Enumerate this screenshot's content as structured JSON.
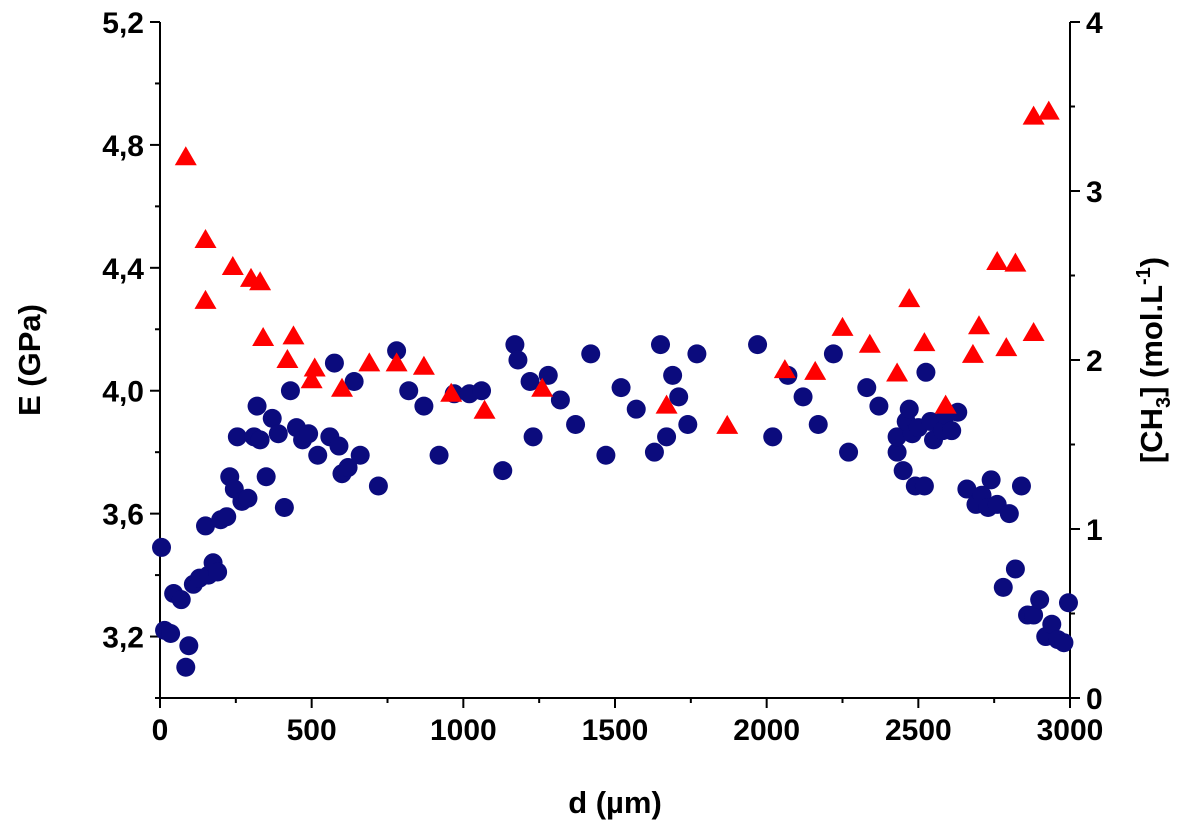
{
  "chart_data": {
    "type": "scatter",
    "xlabel": "d (µm)",
    "ylabel_left": "E (GPa)",
    "ylabel_right": {
      "main": "[CH",
      "sub3": "3",
      "mid": "] (mol.L",
      "sup": "-1",
      "end": ")"
    },
    "xlim": [
      0,
      3000
    ],
    "ylim_left": [
      3.0,
      5.2
    ],
    "ylim_right": [
      0,
      4
    ],
    "x_ticks": [
      0,
      500,
      1000,
      1500,
      2000,
      2500,
      3000
    ],
    "x_tick_labels": [
      "0",
      "500",
      "1000",
      "1500",
      "2000",
      "2500",
      "3000"
    ],
    "y_left_ticks": [
      3.2,
      3.6,
      4.0,
      4.4,
      4.8,
      5.2
    ],
    "y_left_tick_labels": [
      "3,2",
      "3,6",
      "4,0",
      "4,4",
      "4,8",
      "5,2"
    ],
    "y_right_ticks": [
      0,
      1,
      2,
      3,
      4
    ],
    "y_right_tick_labels": [
      "0",
      "1",
      "2",
      "3",
      "4"
    ],
    "colors": {
      "series_E": "#0b0b7d",
      "series_CH3": "#ff0000"
    },
    "series": [
      {
        "axis": "left",
        "marker": "circle",
        "points": [
          [
            5,
            3.49
          ],
          [
            15,
            3.22
          ],
          [
            35,
            3.21
          ],
          [
            45,
            3.34
          ],
          [
            70,
            3.32
          ],
          [
            85,
            3.1
          ],
          [
            95,
            3.17
          ],
          [
            110,
            3.37
          ],
          [
            130,
            3.39
          ],
          [
            150,
            3.56
          ],
          [
            160,
            3.4
          ],
          [
            175,
            3.44
          ],
          [
            190,
            3.41
          ],
          [
            200,
            3.58
          ],
          [
            220,
            3.59
          ],
          [
            230,
            3.72
          ],
          [
            245,
            3.68
          ],
          [
            255,
            3.85
          ],
          [
            270,
            3.64
          ],
          [
            290,
            3.65
          ],
          [
            310,
            3.85
          ],
          [
            320,
            3.95
          ],
          [
            330,
            3.84
          ],
          [
            350,
            3.72
          ],
          [
            370,
            3.91
          ],
          [
            390,
            3.86
          ],
          [
            410,
            3.62
          ],
          [
            430,
            4.0
          ],
          [
            450,
            3.88
          ],
          [
            470,
            3.84
          ],
          [
            490,
            3.86
          ],
          [
            520,
            3.79
          ],
          [
            560,
            3.85
          ],
          [
            575,
            4.09
          ],
          [
            590,
            3.82
          ],
          [
            600,
            3.73
          ],
          [
            620,
            3.75
          ],
          [
            640,
            4.03
          ],
          [
            660,
            3.79
          ],
          [
            720,
            3.69
          ],
          [
            780,
            4.13
          ],
          [
            820,
            4.0
          ],
          [
            870,
            3.95
          ],
          [
            920,
            3.79
          ],
          [
            970,
            3.99
          ],
          [
            1020,
            3.99
          ],
          [
            1060,
            4.0
          ],
          [
            1130,
            3.74
          ],
          [
            1170,
            4.15
          ],
          [
            1180,
            4.1
          ],
          [
            1220,
            4.03
          ],
          [
            1230,
            3.85
          ],
          [
            1280,
            4.05
          ],
          [
            1320,
            3.97
          ],
          [
            1370,
            3.89
          ],
          [
            1420,
            4.12
          ],
          [
            1470,
            3.79
          ],
          [
            1520,
            4.01
          ],
          [
            1570,
            3.94
          ],
          [
            1630,
            3.8
          ],
          [
            1650,
            4.15
          ],
          [
            1670,
            3.85
          ],
          [
            1690,
            4.05
          ],
          [
            1710,
            3.98
          ],
          [
            1740,
            3.89
          ],
          [
            1770,
            4.12
          ],
          [
            1970,
            4.15
          ],
          [
            2020,
            3.85
          ],
          [
            2070,
            4.05
          ],
          [
            2120,
            3.98
          ],
          [
            2170,
            3.89
          ],
          [
            2220,
            4.12
          ],
          [
            2270,
            3.8
          ],
          [
            2330,
            4.01
          ],
          [
            2370,
            3.95
          ],
          [
            2430,
            3.8
          ],
          [
            2430,
            3.85
          ],
          [
            2450,
            3.74
          ],
          [
            2460,
            3.9
          ],
          [
            2470,
            3.94
          ],
          [
            2480,
            3.86
          ],
          [
            2490,
            3.69
          ],
          [
            2500,
            3.88
          ],
          [
            2520,
            3.69
          ],
          [
            2525,
            4.06
          ],
          [
            2540,
            3.9
          ],
          [
            2550,
            3.84
          ],
          [
            2580,
            3.87
          ],
          [
            2590,
            3.92
          ],
          [
            2610,
            3.87
          ],
          [
            2630,
            3.93
          ],
          [
            2660,
            3.68
          ],
          [
            2690,
            3.63
          ],
          [
            2710,
            3.66
          ],
          [
            2730,
            3.62
          ],
          [
            2740,
            3.71
          ],
          [
            2760,
            3.63
          ],
          [
            2780,
            3.36
          ],
          [
            2800,
            3.6
          ],
          [
            2820,
            3.42
          ],
          [
            2840,
            3.69
          ],
          [
            2860,
            3.27
          ],
          [
            2880,
            3.27
          ],
          [
            2900,
            3.32
          ],
          [
            2920,
            3.2
          ],
          [
            2940,
            3.24
          ],
          [
            2960,
            3.19
          ],
          [
            2980,
            3.18
          ],
          [
            2995,
            3.31
          ]
        ]
      },
      {
        "axis": "right",
        "marker": "triangle",
        "points": [
          [
            85,
            3.2
          ],
          [
            150,
            2.71
          ],
          [
            150,
            2.35
          ],
          [
            240,
            2.55
          ],
          [
            300,
            2.48
          ],
          [
            330,
            2.46
          ],
          [
            340,
            2.13
          ],
          [
            420,
            2.0
          ],
          [
            440,
            2.14
          ],
          [
            500,
            1.88
          ],
          [
            510,
            1.95
          ],
          [
            600,
            1.83
          ],
          [
            690,
            1.98
          ],
          [
            780,
            1.98
          ],
          [
            870,
            1.96
          ],
          [
            960,
            1.8
          ],
          [
            1070,
            1.7
          ],
          [
            1260,
            1.83
          ],
          [
            1670,
            1.73
          ],
          [
            1870,
            1.61
          ],
          [
            2060,
            1.94
          ],
          [
            2160,
            1.93
          ],
          [
            2250,
            2.19
          ],
          [
            2340,
            2.09
          ],
          [
            2430,
            1.92
          ],
          [
            2470,
            2.36
          ],
          [
            2520,
            2.1
          ],
          [
            2590,
            1.73
          ],
          [
            2680,
            2.03
          ],
          [
            2700,
            2.2
          ],
          [
            2760,
            2.58
          ],
          [
            2790,
            2.07
          ],
          [
            2820,
            2.57
          ],
          [
            2880,
            3.44
          ],
          [
            2880,
            2.16
          ],
          [
            2930,
            3.47
          ]
        ]
      }
    ]
  }
}
